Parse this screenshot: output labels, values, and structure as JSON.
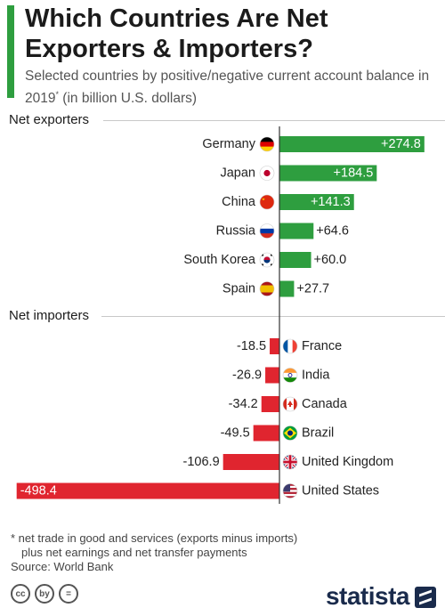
{
  "header": {
    "title": "Which Countries Are Net Exporters & Importers?",
    "subtitle": "Selected countries by positive/negative current account balance in 2019",
    "subtitle_marker": "*",
    "subtitle_unit": " (in billion U.S. dollars)"
  },
  "sections": {
    "exporters_label": "Net exporters",
    "importers_label": "Net importers"
  },
  "colors": {
    "positive": "#2e9e3f",
    "negative": "#e0252f",
    "accent": "#2e9e3f",
    "axis": "#333333"
  },
  "chart_data": {
    "type": "bar",
    "orientation": "horizontal",
    "title": "Which Countries Are Net Exporters & Importers?",
    "unit": "billion U.S. dollars",
    "exporters": {
      "categories": [
        "Germany",
        "Japan",
        "China",
        "Russia",
        "South Korea",
        "Spain"
      ],
      "values": [
        274.8,
        184.5,
        141.3,
        64.6,
        60.0,
        27.7
      ],
      "labels": [
        "+274.8",
        "+184.5",
        "+141.3",
        "+64.6",
        "+60.0",
        "+27.7"
      ],
      "flags": [
        "flag-germany",
        "flag-japan",
        "flag-china",
        "flag-russia",
        "flag-south-korea",
        "flag-spain"
      ]
    },
    "importers": {
      "categories": [
        "France",
        "India",
        "Canada",
        "Brazil",
        "United Kingdom",
        "United States"
      ],
      "values": [
        -18.5,
        -26.9,
        -34.2,
        -49.5,
        -106.9,
        -498.4
      ],
      "labels": [
        "-18.5",
        "-26.9",
        "-34.2",
        "-49.5",
        "-106.9",
        "-498.4"
      ],
      "flags": [
        "flag-france",
        "flag-india",
        "flag-canada",
        "flag-brazil",
        "flag-united-kingdom",
        "flag-united-states"
      ]
    }
  },
  "footnote": {
    "line1": "* net trade in good and services (exports minus imports)",
    "line2": "plus net earnings and net transfer payments",
    "source": "Source: World Bank"
  },
  "footer": {
    "brand": "statista",
    "license_icons": [
      "cc",
      "by",
      "="
    ]
  }
}
